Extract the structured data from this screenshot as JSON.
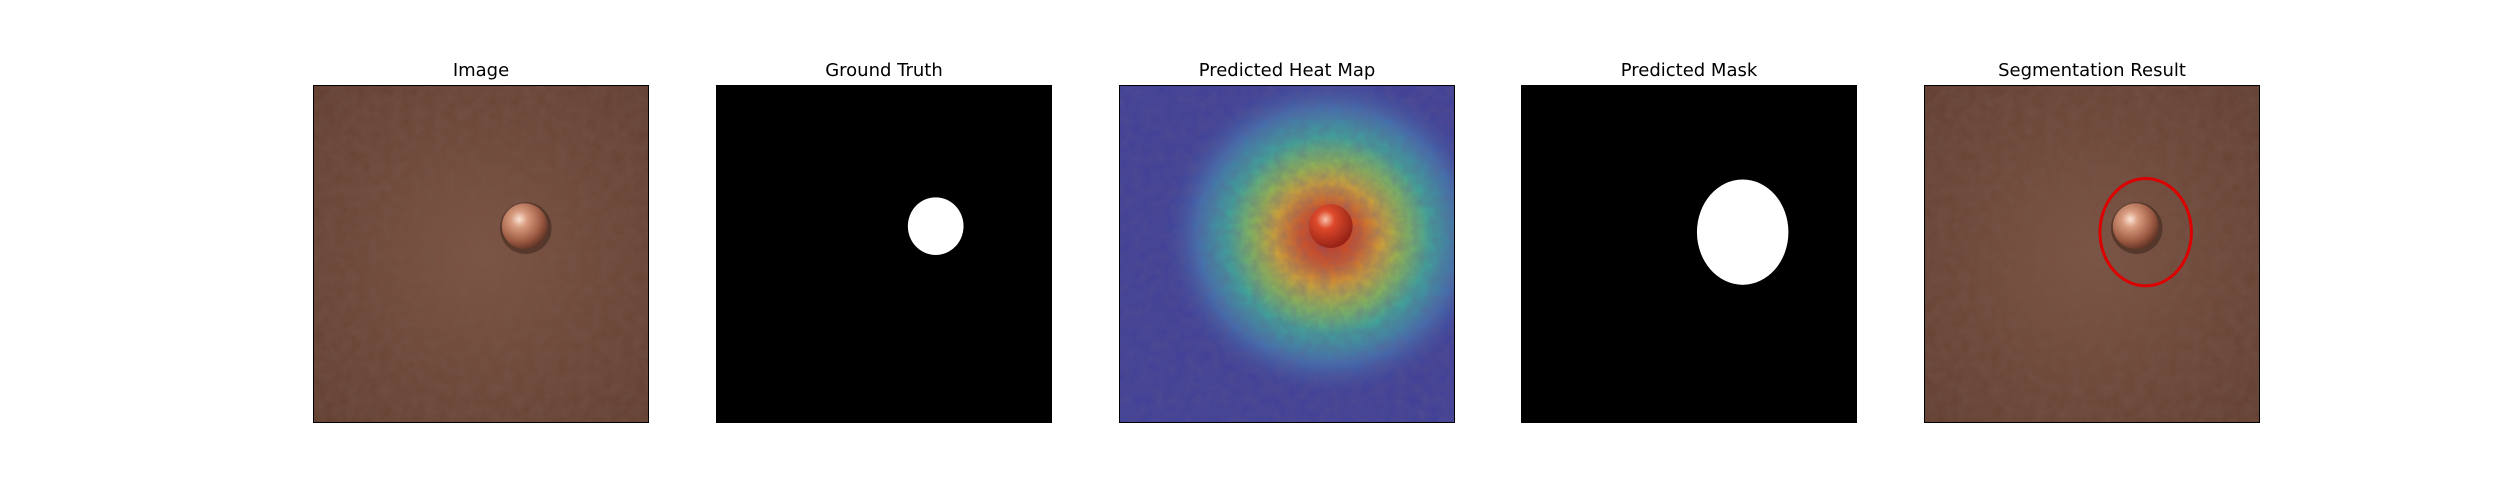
{
  "figure": {
    "panels": [
      {
        "title": "Image",
        "kind": "photo"
      },
      {
        "title": "Ground Truth",
        "kind": "mask"
      },
      {
        "title": "Predicted Heat Map",
        "kind": "heatmap"
      },
      {
        "title": "Predicted Mask",
        "kind": "mask"
      },
      {
        "title": "Segmentation Result",
        "kind": "overlay"
      }
    ],
    "colors": {
      "leather": "#6b4536",
      "leather_light": "#7d5344",
      "leather_dark": "#583628",
      "rivet": "#c98a6e",
      "mask_bg": "#000000",
      "mask_fg": "#ffffff",
      "heat_cold": "#3a3f9a",
      "heat_hot": "#d02a1a",
      "contour": "#dd0000"
    }
  }
}
